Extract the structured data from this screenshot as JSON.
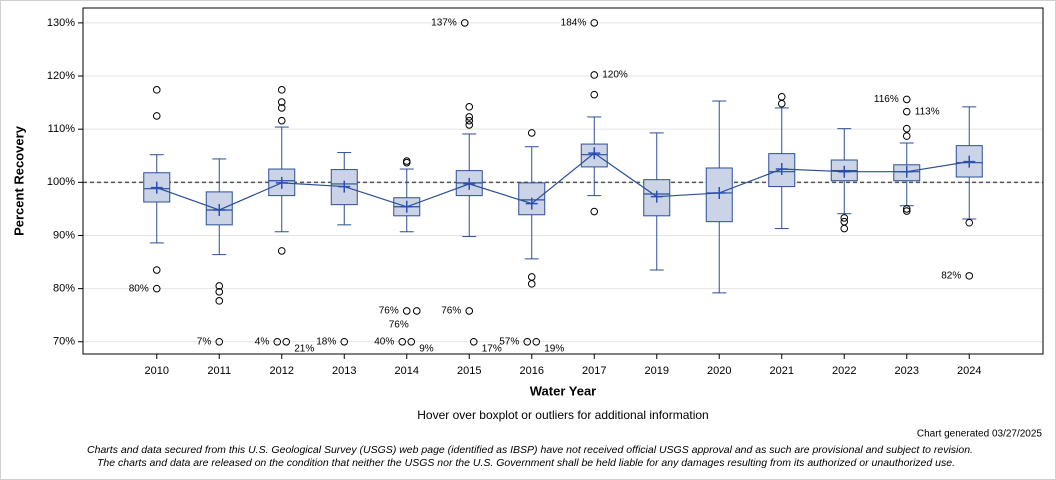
{
  "chart_data": {
    "type": "boxplot",
    "y_label": "Percent Recovery",
    "x_label": "Water Year",
    "note": "Hover over boxplot or outliers for additional information",
    "generated": "Chart generated 03/27/2025",
    "footnote": [
      "Charts and data secured from this U.S. Geological Survey (USGS) web page (identified as IBSP) have not received official USGS approval and as such are provisional and subject to revision.",
      "The charts and data are released on the condition that neither the USGS nor the U.S. Government shall be held liable for any damages resulting from its authorized or unauthorized use."
    ],
    "ylim": [
      67.7,
      132.8
    ],
    "yticks": [
      {
        "value": 70,
        "label": "70%"
      },
      {
        "value": 80,
        "label": "80%"
      },
      {
        "value": 90,
        "label": "90%"
      },
      {
        "value": 100,
        "label": "100%"
      },
      {
        "value": 110,
        "label": "110%"
      },
      {
        "value": 120,
        "label": "120%"
      },
      {
        "value": 130,
        "label": "130%"
      }
    ],
    "reference_line": 100,
    "grid": true,
    "box_color": "#cbd4e6",
    "line_color": "#2b4f96",
    "mean_color": "#2a4fc4",
    "categories": [
      "2010",
      "2011",
      "2012",
      "2013",
      "2014",
      "2015",
      "2016",
      "2017",
      "2019",
      "2020",
      "2021",
      "2022",
      "2023",
      "2024"
    ],
    "boxes": [
      {
        "whisker_low": 88.6,
        "q1": 96.3,
        "median": 98.8,
        "q3": 101.8,
        "whisker_high": 105.2,
        "mean": 99.0,
        "outliers": [
          117.4,
          112.5,
          83.5,
          {
            "value": 80,
            "label": "80%"
          }
        ],
        "offscale": []
      },
      {
        "whisker_low": 86.4,
        "q1": 92.0,
        "median": 94.8,
        "q3": 98.2,
        "whisker_high": 104.4,
        "mean": 94.8,
        "outliers": [
          80.5,
          79.4,
          77.7
        ],
        "offscale": [
          {
            "value": 7,
            "label": "7%"
          }
        ]
      },
      {
        "whisker_low": 90.7,
        "q1": 97.5,
        "median": 100.3,
        "q3": 102.5,
        "whisker_high": 110.4,
        "mean": 99.9,
        "outliers": [
          117.4,
          115.1,
          114.0,
          111.6,
          87.1
        ],
        "offscale": [
          {
            "value": 4,
            "label": "4%"
          },
          {
            "value": 21,
            "label": "21%"
          }
        ]
      },
      {
        "whisker_low": 92.0,
        "q1": 95.8,
        "median": 99.7,
        "q3": 102.4,
        "whisker_high": 105.6,
        "mean": 99.2,
        "outliers": [],
        "offscale": [
          {
            "value": 18,
            "label": "18%"
          }
        ]
      },
      {
        "whisker_low": 90.7,
        "q1": 93.7,
        "median": 95.4,
        "q3": 97.1,
        "whisker_high": 102.5,
        "mean": 95.4,
        "outliers": [
          104.0,
          103.7,
          {
            "value": 75.8,
            "label": "76%"
          },
          {
            "value": 75.8,
            "label": "76%"
          }
        ],
        "offscale": [
          {
            "value": 40,
            "label": "40%"
          },
          {
            "value": 9,
            "label": "9%"
          }
        ]
      },
      {
        "whisker_low": 89.8,
        "q1": 97.5,
        "median": 99.9,
        "q3": 102.2,
        "whisker_high": 109.1,
        "mean": 99.7,
        "outliers": [
          114.2,
          112.3,
          111.6,
          110.8,
          {
            "value": 75.8,
            "label": "76%"
          }
        ],
        "offscale": [
          {
            "value": 137,
            "label": "137%"
          },
          {
            "value": 17,
            "label": "17%"
          }
        ]
      },
      {
        "whisker_low": 85.6,
        "q1": 93.9,
        "median": 96.7,
        "q3": 99.9,
        "whisker_high": 106.7,
        "mean": 96.0,
        "outliers": [
          109.3,
          82.2,
          80.9
        ],
        "offscale": [
          {
            "value": 57,
            "label": "57%"
          },
          {
            "value": 19,
            "label": "19%"
          }
        ]
      },
      {
        "whisker_low": 97.5,
        "q1": 102.9,
        "median": 105.2,
        "q3": 107.2,
        "whisker_high": 112.3,
        "mean": 105.5,
        "outliers": [
          116.5,
          94.5,
          {
            "value": 120.2,
            "label": "120%"
          }
        ],
        "offscale": [
          {
            "value": 184,
            "label": "184%"
          }
        ]
      },
      {
        "whisker_low": 83.5,
        "q1": 93.7,
        "median": 97.8,
        "q3": 100.5,
        "whisker_high": 109.3,
        "mean": 97.3,
        "outliers": [],
        "offscale": []
      },
      {
        "whisker_low": 79.2,
        "q1": 92.6,
        "median": 98.0,
        "q3": 102.7,
        "whisker_high": 115.3,
        "mean": 98.0,
        "outliers": [],
        "offscale": []
      },
      {
        "whisker_low": 91.3,
        "q1": 99.2,
        "median": 102.0,
        "q3": 105.4,
        "whisker_high": 114.0,
        "mean": 102.5,
        "outliers": [
          116.1,
          114.8
        ],
        "offscale": []
      },
      {
        "whisker_low": 94.1,
        "q1": 100.3,
        "median": 102.2,
        "q3": 104.2,
        "whisker_high": 110.1,
        "mean": 102.0,
        "outliers": [
          93.3,
          92.6,
          91.3
        ],
        "offscale": []
      },
      {
        "whisker_low": 95.6,
        "q1": 100.3,
        "median": 102.0,
        "q3": 103.3,
        "whisker_high": 107.4,
        "mean": 102.0,
        "outliers": [
          {
            "value": 115.6,
            "label": "116%"
          },
          {
            "value": 113.3,
            "label": "113%"
          },
          110.1,
          108.7,
          95.0,
          94.6
        ],
        "offscale": []
      },
      {
        "whisker_low": 93.1,
        "q1": 101.0,
        "median": 103.7,
        "q3": 106.9,
        "whisker_high": 114.2,
        "mean": 103.9,
        "outliers": [
          92.4,
          {
            "value": 82.4,
            "label": "82%"
          }
        ],
        "offscale": []
      }
    ]
  }
}
